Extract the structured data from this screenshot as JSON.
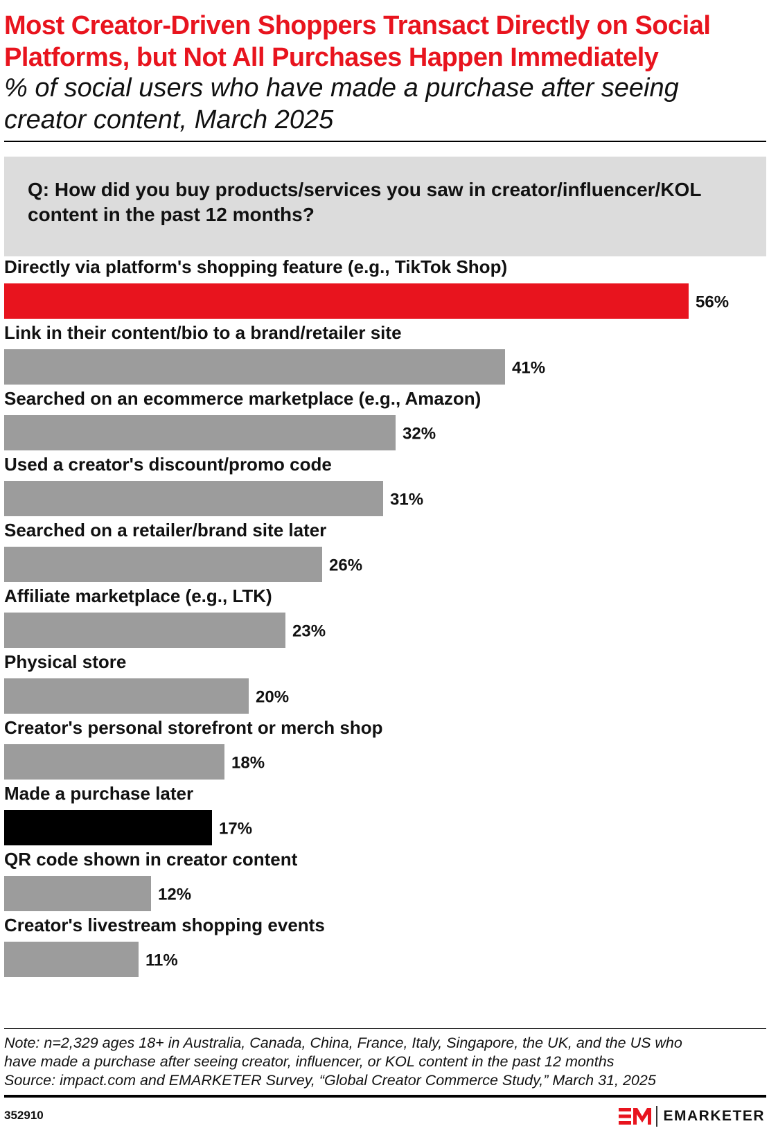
{
  "header": {
    "title_line1": "Most Creator-Driven Shoppers Transact Directly on Social",
    "title_line2": "Platforms, but Not All Purchases Happen Immediately",
    "subtitle_line1": "% of social users who have made a purchase after seeing",
    "subtitle_line2": "creator content, March 2025"
  },
  "question": {
    "line1": "Q: How did you buy products/services you saw in creator/influencer/KOL",
    "line2": "content in the past 12 months?"
  },
  "chart_data": {
    "type": "bar",
    "orientation": "horizontal",
    "title": "Most Creator-Driven Shoppers Transact Directly on Social Platforms, but Not All Purchases Happen Immediately",
    "subtitle": "% of social users who have made a purchase after seeing creator content, March 2025",
    "categories": [
      "Directly via platform's shopping feature (e.g., TikTok Shop)",
      "Link in their content/bio to a brand/retailer site",
      "Searched on an ecommerce marketplace (e.g., Amazon)",
      "Used a creator's discount/promo code",
      "Searched on a retailer/brand site later",
      "Affiliate marketplace (e.g., LTK)",
      "Physical store",
      "Creator's personal storefront or merch shop",
      "Made a purchase later",
      "QR code shown in creator content",
      "Creator's livestream shopping events"
    ],
    "values": [
      56,
      41,
      32,
      31,
      26,
      23,
      20,
      18,
      17,
      12,
      11
    ],
    "value_labels": [
      "56%",
      "41%",
      "32%",
      "31%",
      "26%",
      "23%",
      "20%",
      "18%",
      "17%",
      "12%",
      "11%"
    ],
    "bar_colors": [
      "#e8141e",
      "#9c9c9c",
      "#9c9c9c",
      "#9c9c9c",
      "#9c9c9c",
      "#9c9c9c",
      "#9c9c9c",
      "#9c9c9c",
      "#000000",
      "#9c9c9c",
      "#9c9c9c"
    ],
    "xlim": [
      0,
      56
    ],
    "grid": false
  },
  "footer": {
    "note_line1": "Note: n=2,329 ages 18+ in Australia, Canada, China, France, Italy, Singapore, the UK, and the US who",
    "note_line2": "have made a purchase after seeing creator, influencer, or KOL content in the past 12 months",
    "source_line": "Source: impact.com and EMARKETER Survey, “Global Creator Commerce Study,” March 31, 2025",
    "chart_id": "352910",
    "brand_name": "EMARKETER",
    "brand_color": "#e8141e"
  }
}
